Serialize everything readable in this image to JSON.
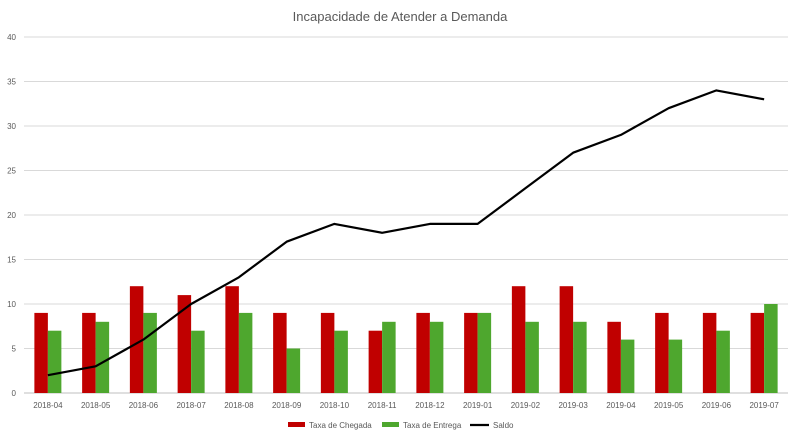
{
  "chart_data": {
    "type": "bar",
    "title": "Incapacidade de Atender a Demanda",
    "categories": [
      "2018-04",
      "2018-05",
      "2018-06",
      "2018-07",
      "2018-08",
      "2018-09",
      "2018-10",
      "2018-11",
      "2018-12",
      "2019-01",
      "2019-02",
      "2019-03",
      "2019-04",
      "2019-05",
      "2019-06",
      "2019-07"
    ],
    "series": [
      {
        "name": "Taxa de Chegada",
        "kind": "bar",
        "color": "#c00000",
        "values": [
          9,
          9,
          12,
          11,
          12,
          9,
          9,
          7,
          9,
          9,
          12,
          12,
          8,
          9,
          9,
          9
        ]
      },
      {
        "name": "Taxa de Entrega",
        "kind": "bar",
        "color": "#4ea72e",
        "values": [
          7,
          8,
          9,
          7,
          9,
          5,
          7,
          8,
          8,
          9,
          8,
          8,
          6,
          6,
          7,
          10
        ]
      },
      {
        "name": "Saldo",
        "kind": "line",
        "color": "#000000",
        "values": [
          2,
          3,
          6,
          10,
          13,
          17,
          19,
          18,
          19,
          19,
          23,
          27,
          29,
          32,
          34,
          33
        ]
      }
    ],
    "ylim": [
      0,
      40
    ],
    "yticks": [
      0,
      5,
      10,
      15,
      20,
      25,
      30,
      35,
      40
    ],
    "grid": true,
    "legend_position": "bottom"
  }
}
